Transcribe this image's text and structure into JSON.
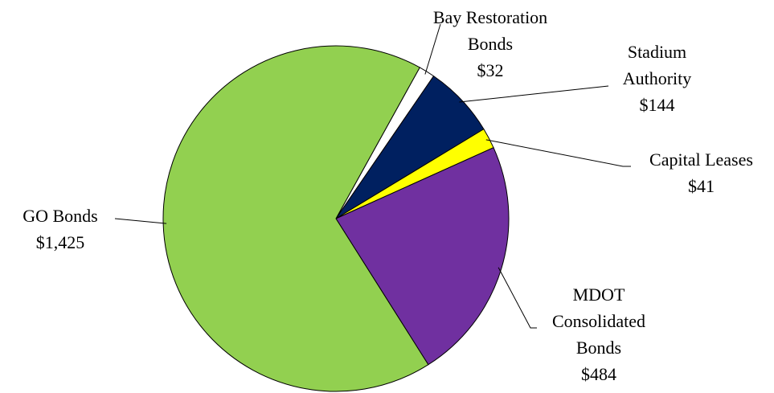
{
  "chart_data": {
    "type": "pie",
    "categories": [
      "Bay Restoration Bonds",
      "Stadium Authority",
      "Capital Leases",
      "MDOT Consolidated Bonds",
      "GO Bonds"
    ],
    "values": [
      32,
      144,
      41,
      484,
      1425
    ],
    "value_labels": [
      "$32",
      "$144",
      "$41",
      "$484",
      "$1,425"
    ],
    "colors": [
      "#ffffff",
      "#002060",
      "#ffff00",
      "#7030a0",
      "#92d050"
    ]
  }
}
